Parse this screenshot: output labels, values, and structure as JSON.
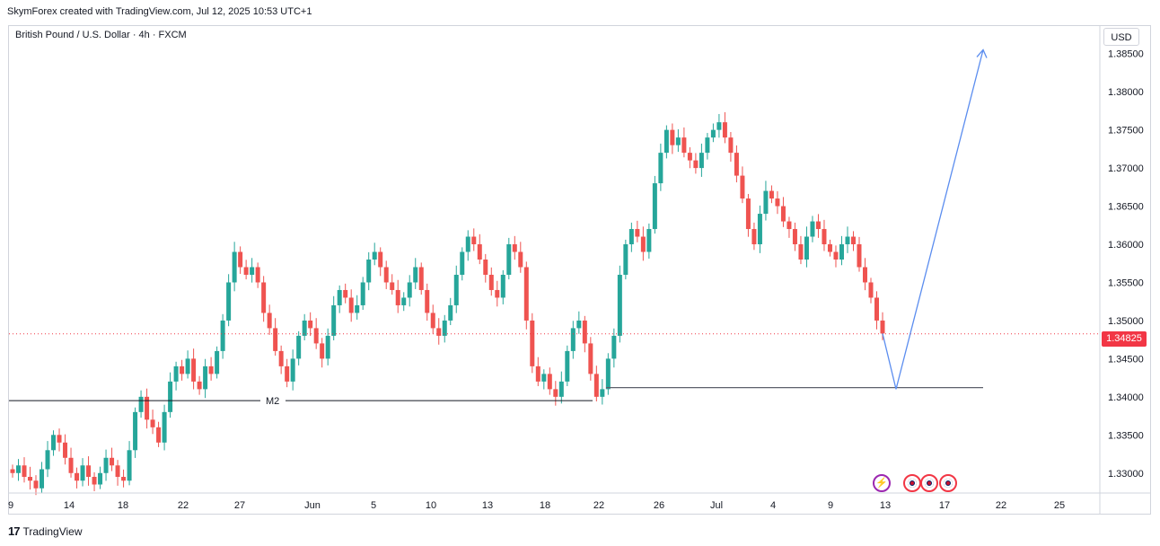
{
  "header": {
    "attribution": "SkymForex created with TradingView.com, Jul 12, 2025 10:53 UTC+1",
    "symbol": "British Pound / U.S. Dollar · 4h · FXCM",
    "currency": "USD",
    "current_price": "1.34825",
    "footer_brand": "TradingView"
  },
  "colors": {
    "up": "#26a69a",
    "down": "#ef5350",
    "arrow": "#5b8def",
    "level": "#131722",
    "price_line": "#f23645"
  },
  "icons": [
    "lightning-icon",
    "us-flag-icon",
    "uk-flag-icon",
    "uk-flag-icon"
  ],
  "chart_data": {
    "type": "candlestick",
    "ylim": [
      1.3275,
      1.3885
    ],
    "y_ticks": [
      "1.38500",
      "1.38000",
      "1.37500",
      "1.37000",
      "1.36500",
      "1.36000",
      "1.35500",
      "1.35000",
      "1.34500",
      "1.34000",
      "1.33500",
      "1.33000"
    ],
    "x_ticks": [
      "9",
      "14",
      "18",
      "22",
      "27",
      "Jun",
      "5",
      "10",
      "13",
      "18",
      "22",
      "26",
      "Jul",
      "4",
      "9",
      "13",
      "17",
      "22",
      "25"
    ],
    "closes": [
      1.33,
      1.331,
      1.3295,
      1.329,
      1.328,
      1.3305,
      1.333,
      1.335,
      1.334,
      1.332,
      1.33,
      1.329,
      1.331,
      1.3295,
      1.3285,
      1.33,
      1.332,
      1.331,
      1.3295,
      1.329,
      1.333,
      1.338,
      1.34,
      1.337,
      1.336,
      1.334,
      1.338,
      1.342,
      1.344,
      1.343,
      1.345,
      1.342,
      1.341,
      1.344,
      1.343,
      1.346,
      1.35,
      1.355,
      1.359,
      1.357,
      1.356,
      1.357,
      1.355,
      1.351,
      1.349,
      1.346,
      1.344,
      1.342,
      1.345,
      1.348,
      1.35,
      1.349,
      1.347,
      1.345,
      1.348,
      1.352,
      1.354,
      1.353,
      1.351,
      1.352,
      1.355,
      1.358,
      1.359,
      1.357,
      1.355,
      1.354,
      1.352,
      1.353,
      1.355,
      1.357,
      1.354,
      1.351,
      1.349,
      1.348,
      1.35,
      1.352,
      1.356,
      1.359,
      1.361,
      1.36,
      1.358,
      1.356,
      1.354,
      1.353,
      1.356,
      1.36,
      1.359,
      1.357,
      1.35,
      1.344,
      1.342,
      1.343,
      1.341,
      1.34,
      1.342,
      1.346,
      1.349,
      1.35,
      1.347,
      1.343,
      1.34,
      1.341,
      1.345,
      1.348,
      1.356,
      1.36,
      1.362,
      1.361,
      1.359,
      1.362,
      1.368,
      1.372,
      1.375,
      1.373,
      1.374,
      1.372,
      1.371,
      1.37,
      1.372,
      1.374,
      1.375,
      1.376,
      1.374,
      1.372,
      1.369,
      1.366,
      1.362,
      1.36,
      1.364,
      1.367,
      1.366,
      1.365,
      1.363,
      1.362,
      1.36,
      1.358,
      1.361,
      1.363,
      1.362,
      1.36,
      1.359,
      1.358,
      1.36,
      1.361,
      1.36,
      1.357,
      1.355,
      1.353,
      1.35,
      1.3483
    ],
    "levels": [
      {
        "label": "M2",
        "value": 1.3395
      },
      {
        "label": "",
        "value": 1.3412
      }
    ],
    "projection": [
      1.3483,
      1.341,
      1.3855
    ]
  }
}
